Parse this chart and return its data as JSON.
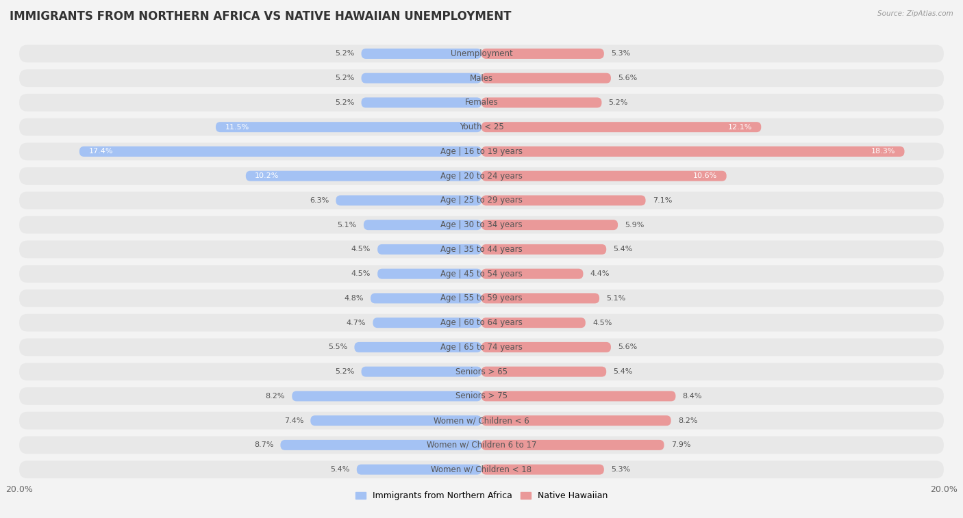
{
  "title": "IMMIGRANTS FROM NORTHERN AFRICA VS NATIVE HAWAIIAN UNEMPLOYMENT",
  "source": "Source: ZipAtlas.com",
  "categories": [
    "Unemployment",
    "Males",
    "Females",
    "Youth < 25",
    "Age | 16 to 19 years",
    "Age | 20 to 24 years",
    "Age | 25 to 29 years",
    "Age | 30 to 34 years",
    "Age | 35 to 44 years",
    "Age | 45 to 54 years",
    "Age | 55 to 59 years",
    "Age | 60 to 64 years",
    "Age | 65 to 74 years",
    "Seniors > 65",
    "Seniors > 75",
    "Women w/ Children < 6",
    "Women w/ Children 6 to 17",
    "Women w/ Children < 18"
  ],
  "left_values": [
    5.2,
    5.2,
    5.2,
    11.5,
    17.4,
    10.2,
    6.3,
    5.1,
    4.5,
    4.5,
    4.8,
    4.7,
    5.5,
    5.2,
    8.2,
    7.4,
    8.7,
    5.4
  ],
  "right_values": [
    5.3,
    5.6,
    5.2,
    12.1,
    18.3,
    10.6,
    7.1,
    5.9,
    5.4,
    4.4,
    5.1,
    4.5,
    5.6,
    5.4,
    8.4,
    8.2,
    7.9,
    5.3
  ],
  "left_color": "#a4c2f4",
  "right_color": "#ea9999",
  "left_label": "Immigrants from Northern Africa",
  "right_label": "Native Hawaiian",
  "xlim": 20.0,
  "background_color": "#f3f3f3",
  "row_color": "#e8e8e8",
  "title_fontsize": 12,
  "label_fontsize": 8.5,
  "value_fontsize": 8.0
}
